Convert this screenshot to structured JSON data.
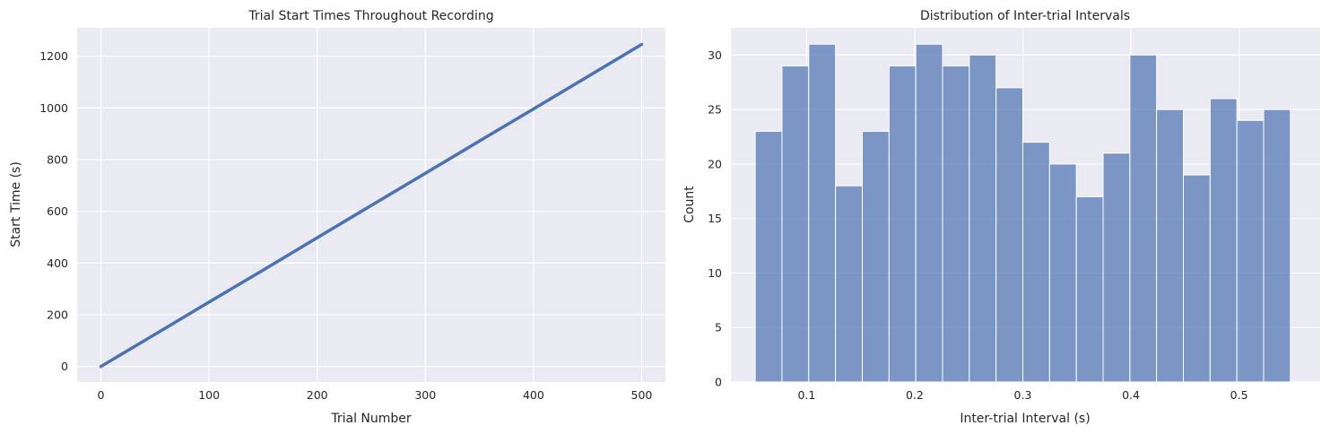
{
  "colors": {
    "background": "#ffffff",
    "plot_area": "#eaeaf2",
    "grid": "#ffffff",
    "line": "#4c72b0",
    "bar": "#4c72b0"
  },
  "chart_data": [
    {
      "type": "line",
      "title": "Trial Start Times Throughout Recording",
      "xlabel": "Trial Number",
      "ylabel": "Start Time (s)",
      "xlim": [
        -22,
        522
      ],
      "ylim": [
        -60,
        1310
      ],
      "xticks": [
        0,
        100,
        200,
        300,
        400,
        500
      ],
      "yticks": [
        0,
        200,
        400,
        600,
        800,
        1000,
        1200
      ],
      "series": [
        {
          "x": [
            0,
            50,
            100,
            150,
            200,
            250,
            300,
            350,
            400,
            450,
            500
          ],
          "y": [
            0,
            124,
            249,
            373,
            498,
            623,
            747,
            872,
            996,
            1121,
            1246
          ]
        }
      ],
      "grid": true
    },
    {
      "type": "bar",
      "title": "Distribution of Inter-trial Intervals",
      "xlabel": "Inter-trial Interval (s)",
      "ylabel": "Count",
      "xlim": [
        0.03,
        0.575
      ],
      "ylim": [
        0,
        32.5
      ],
      "xticks": [
        0.1,
        0.2,
        0.3,
        0.4,
        0.5
      ],
      "yticks": [
        0,
        5,
        10,
        15,
        20,
        25,
        30
      ],
      "bin_start": 0.0525,
      "bin_width": 0.02475,
      "values": [
        23,
        29,
        31,
        18,
        23,
        29,
        31,
        29,
        30,
        27,
        22,
        20,
        17,
        21,
        30,
        25,
        19,
        26,
        24,
        25
      ],
      "grid": true
    }
  ]
}
